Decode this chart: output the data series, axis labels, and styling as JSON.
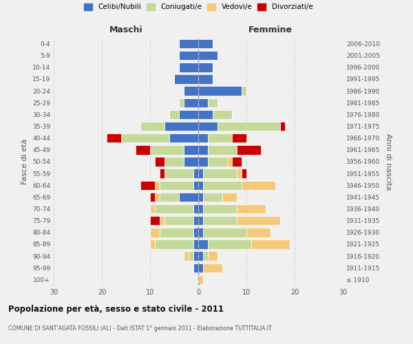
{
  "age_groups": [
    "100+",
    "95-99",
    "90-94",
    "85-89",
    "80-84",
    "75-79",
    "70-74",
    "65-69",
    "60-64",
    "55-59",
    "50-54",
    "45-49",
    "40-44",
    "35-39",
    "30-34",
    "25-29",
    "20-24",
    "15-19",
    "10-14",
    "5-9",
    "0-4"
  ],
  "birth_years": [
    "≤ 1910",
    "1911-1915",
    "1916-1920",
    "1921-1925",
    "1926-1930",
    "1931-1935",
    "1936-1940",
    "1941-1945",
    "1946-1950",
    "1951-1955",
    "1956-1960",
    "1961-1965",
    "1966-1970",
    "1971-1975",
    "1976-1980",
    "1981-1985",
    "1986-1990",
    "1991-1995",
    "1996-2000",
    "2001-2005",
    "2006-2010"
  ],
  "colors": {
    "celibi": "#4472c4",
    "coniugati": "#c5d99b",
    "vedovi": "#f5c97a",
    "divorziati": "#cc0000"
  },
  "maschi": {
    "celibi": [
      0,
      1,
      1,
      1,
      1,
      1,
      1,
      4,
      1,
      1,
      3,
      3,
      6,
      7,
      4,
      3,
      3,
      5,
      4,
      4,
      4
    ],
    "coniugati": [
      0,
      0,
      1,
      8,
      7,
      6,
      8,
      4,
      7,
      6,
      4,
      7,
      10,
      5,
      2,
      1,
      0,
      0,
      0,
      0,
      0
    ],
    "vedovi": [
      0,
      0,
      1,
      1,
      2,
      1,
      1,
      1,
      1,
      0,
      0,
      0,
      0,
      0,
      0,
      0,
      0,
      0,
      0,
      0,
      0
    ],
    "divorziati": [
      0,
      0,
      0,
      0,
      0,
      2,
      0,
      1,
      3,
      1,
      2,
      3,
      3,
      0,
      0,
      0,
      0,
      0,
      0,
      0,
      0
    ]
  },
  "femmine": {
    "celibi": [
      0,
      1,
      1,
      2,
      1,
      1,
      1,
      1,
      1,
      1,
      2,
      2,
      2,
      4,
      3,
      2,
      9,
      3,
      3,
      4,
      3
    ],
    "coniugati": [
      0,
      0,
      1,
      9,
      9,
      7,
      7,
      4,
      8,
      7,
      4,
      6,
      5,
      13,
      4,
      2,
      1,
      0,
      0,
      0,
      0
    ],
    "vedovi": [
      1,
      4,
      2,
      8,
      5,
      9,
      6,
      3,
      7,
      1,
      1,
      0,
      0,
      0,
      0,
      0,
      0,
      0,
      0,
      0,
      0
    ],
    "divorziati": [
      0,
      0,
      0,
      0,
      0,
      0,
      0,
      0,
      0,
      1,
      2,
      5,
      3,
      1,
      0,
      0,
      0,
      0,
      0,
      0,
      0
    ]
  },
  "xlim": 30,
  "title": "Popolazione per età, sesso e stato civile - 2011",
  "subtitle": "COMUNE DI SANT'AGATA FOSSILI (AL) - Dati ISTAT 1° gennaio 2011 - Elaborazione TUTTITALIA.IT",
  "ylabel": "Fasce di età",
  "ylabel_right": "Anni di nascita",
  "xlabel_maschi": "Maschi",
  "xlabel_femmine": "Femmine",
  "legend_labels": [
    "Celibi/Nubili",
    "Coniugati/e",
    "Vedovi/e",
    "Divorziati/e"
  ],
  "bg_color": "#f0f0f0",
  "grid_color": "#cccccc"
}
